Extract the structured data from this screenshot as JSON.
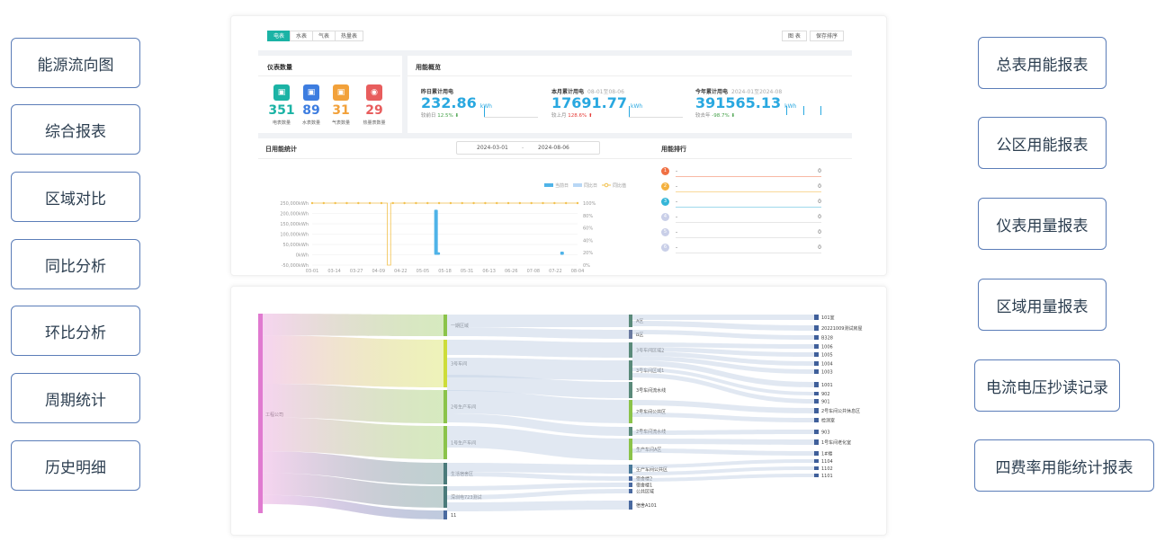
{
  "left_menu": [
    "能源流向图",
    "综合报表",
    "区域对比",
    "同比分析",
    "环比分析",
    "周期统计",
    "历史明细"
  ],
  "right_menu": [
    "总表用能报表",
    "公区用能报表",
    "仪表用量报表",
    "区域用量报表",
    "电流电压抄读记录",
    "四费率用能统计报表"
  ],
  "tabs": [
    "电表",
    "水表",
    "气表",
    "热量表"
  ],
  "toolbar": {
    "chart": "图 表",
    "save_order": "保存排序"
  },
  "meters": {
    "title": "仪表数量",
    "items": [
      {
        "count": "351",
        "label": "电表数量",
        "color": "#1bb3a5"
      },
      {
        "count": "89",
        "label": "水表数量",
        "color": "#3d7de0"
      },
      {
        "count": "31",
        "label": "气表数量",
        "color": "#f2a13a"
      },
      {
        "count": "29",
        "label": "热量表数量",
        "color": "#e85d5d"
      }
    ]
  },
  "overview": {
    "title": "用能概览",
    "yesterday": {
      "label": "昨日累计用电",
      "value": "232.86",
      "unit": "kWh",
      "cmp_label": "较前日",
      "cmp": "12.5%",
      "arrow": "⬇"
    },
    "month": {
      "label": "本月累计用电",
      "range": "08-01至08-06",
      "value": "17691.77",
      "unit": "kWh",
      "cmp_label": "较上月",
      "cmp": "128.6%",
      "arrow": "⬆"
    },
    "year": {
      "label": "今年累计用电",
      "range": "2024-01至2024-08",
      "value": "391565.13",
      "unit": "kWh",
      "cmp_label": "较去年",
      "cmp": "-98.7%",
      "arrow": "⬇"
    }
  },
  "daily": {
    "title": "日用能统计",
    "date_start": "2024-03-01",
    "date_sep": "-",
    "date_end": "2024-08-06"
  },
  "chart_data": {
    "type": "bar",
    "categories": [
      "03-01",
      "03-14",
      "03-27",
      "04-09",
      "04-22",
      "05-05",
      "05-18",
      "05-31",
      "06-13",
      "06-26",
      "07-08",
      "07-22",
      "08-04"
    ],
    "y_ticks": [
      "250,000kWh",
      "200,000kWh",
      "150,000kWh",
      "100,000kWh",
      "50,000kWh",
      "0kWh",
      "-50,000kWh"
    ],
    "y2_ticks": [
      "100%",
      "80%",
      "60%",
      "40%",
      "20%",
      "0%"
    ],
    "legend": [
      "当前日",
      "同比日",
      "同比值"
    ],
    "ylim": [
      -50000,
      250000
    ],
    "bars": [
      {
        "x": 5.6,
        "value": 218000
      },
      {
        "x": 5.7,
        "value": 12000
      },
      {
        "x": 11.3,
        "value": 15000
      }
    ],
    "line": {
      "level": 100,
      "dip_x": [
        3.4,
        3.55
      ],
      "dip_value": 0
    }
  },
  "ranking": {
    "title": "用能排行",
    "items": [
      {
        "rank": "1",
        "name": "-",
        "value": "0",
        "color": "#f07043",
        "bar": "#f8b9a4"
      },
      {
        "rank": "2",
        "name": "-",
        "value": "0",
        "color": "#f4b13e",
        "bar": "#f9d99a"
      },
      {
        "rank": "3",
        "name": "-",
        "value": "0",
        "color": "#35b6d8",
        "bar": "#9fd9ec"
      },
      {
        "rank": "4",
        "name": "-",
        "value": "0",
        "color": "#c9cfe8",
        "bar": "#e6e6e6"
      },
      {
        "rank": "5",
        "name": "-",
        "value": "0",
        "color": "#c9cfe8",
        "bar": "#e6e6e6"
      },
      {
        "rank": "6",
        "name": "-",
        "value": "0",
        "color": "#c9cfe8",
        "bar": "#e6e6e6"
      }
    ]
  },
  "sankey": {
    "root": "工程公司",
    "level1": [
      "一期区域",
      "3号车间",
      "2号生产车间",
      "1号生产车间",
      "生活宿舍区",
      "深圳电723测试",
      "11"
    ],
    "level2": [
      "A区",
      "B区",
      "3号车间区域2",
      "3号车间区域1",
      "3号车间流水线",
      "2号车间公共区",
      "2号车间流水线",
      "生产车间A区",
      "生产车间公共区",
      "宿舍楼2",
      "宿舍楼1",
      "公共区域",
      "宿舍A101"
    ],
    "level3": [
      "101室",
      "20221009测试房屋",
      "B328",
      "1006",
      "1005",
      "1004",
      "1003",
      "1001",
      "902",
      "901",
      "2号车间公共休息区",
      "检测室",
      "903",
      "1号车间老化室",
      "1#楼",
      "1104",
      "1102",
      "1101"
    ]
  }
}
